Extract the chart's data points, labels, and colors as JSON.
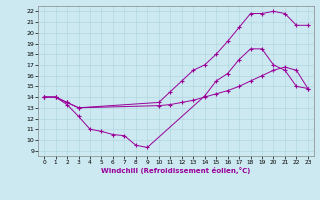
{
  "xlabel": "Windchill (Refroidissement éolien,°C)",
  "xlim": [
    -0.5,
    23.5
  ],
  "ylim": [
    8.5,
    22.5
  ],
  "xticks": [
    0,
    1,
    2,
    3,
    4,
    5,
    6,
    7,
    8,
    9,
    10,
    11,
    12,
    13,
    14,
    15,
    16,
    17,
    18,
    19,
    20,
    21,
    22,
    23
  ],
  "yticks": [
    9,
    10,
    11,
    12,
    13,
    14,
    15,
    16,
    17,
    18,
    19,
    20,
    21,
    22
  ],
  "bg_color": "#cce8f0",
  "line_color": "#990099",
  "line1_x": [
    0,
    1,
    2,
    3,
    4,
    5,
    6,
    7,
    8,
    9,
    14,
    15,
    16,
    17,
    18,
    19,
    20,
    21,
    22,
    23
  ],
  "line1_y": [
    14,
    14,
    13.3,
    12.2,
    11.0,
    10.8,
    10.5,
    10.4,
    9.5,
    9.3,
    14.1,
    15.5,
    16.2,
    17.5,
    18.5,
    18.5,
    17.0,
    16.5,
    15.0,
    14.8
  ],
  "line2_x": [
    0,
    1,
    2,
    3,
    10,
    11,
    12,
    13,
    14,
    15,
    16,
    17,
    18,
    19,
    20,
    21,
    22,
    23
  ],
  "line2_y": [
    14,
    14,
    13.5,
    13.0,
    13.2,
    13.3,
    13.5,
    13.7,
    14.0,
    14.3,
    14.6,
    15.0,
    15.5,
    16.0,
    16.5,
    16.8,
    16.5,
    14.8
  ],
  "line3_x": [
    0,
    1,
    2,
    3,
    10,
    11,
    12,
    13,
    14,
    15,
    16,
    17,
    18,
    19,
    20,
    21,
    22,
    23
  ],
  "line3_y": [
    14,
    14,
    13.5,
    13.0,
    13.5,
    14.5,
    15.5,
    16.5,
    17.0,
    18.0,
    19.2,
    20.5,
    21.8,
    21.8,
    22.0,
    21.8,
    20.7,
    20.7
  ]
}
